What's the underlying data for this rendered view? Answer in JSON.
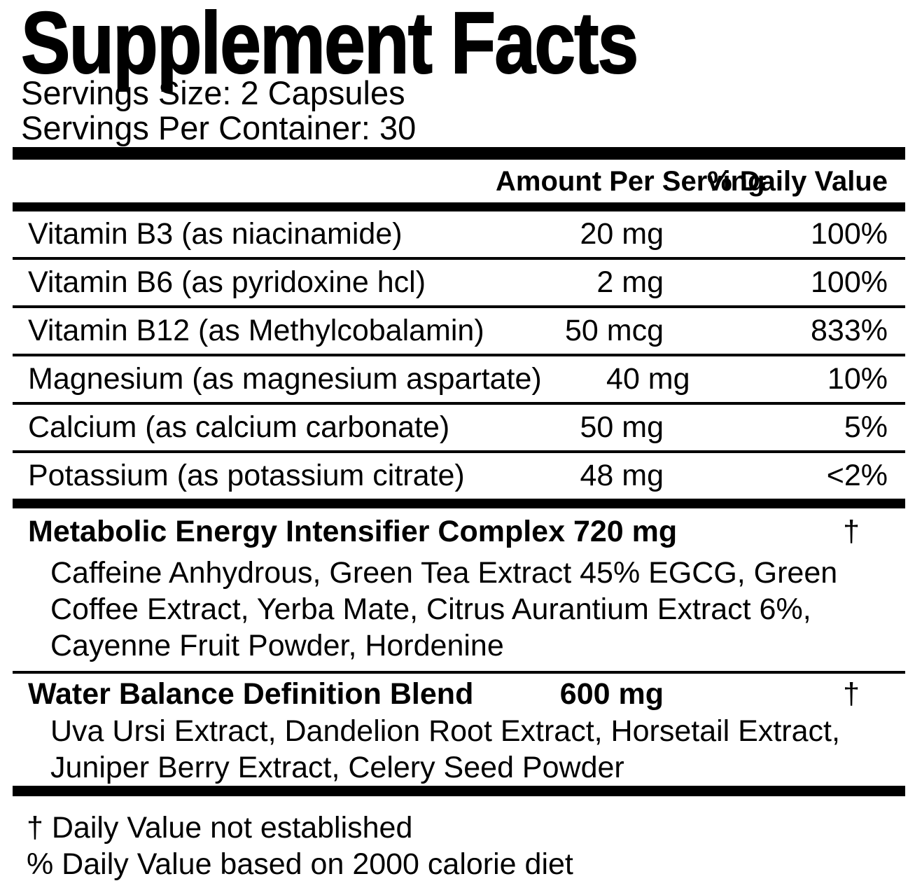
{
  "title": "Supplement Facts",
  "serving_size": "Servings Size: 2 Capsules",
  "servings_per_container": "Servings Per Container: 30",
  "columns": {
    "amount": "Amount Per Serving",
    "dv": "% Daily Value"
  },
  "nutrients": [
    {
      "name": "Vitamin B3 (as niacinamide)",
      "amount": "20 mg",
      "dv": "100%"
    },
    {
      "name": "Vitamin B6 (as pyridoxine hcl)",
      "amount": "2 mg",
      "dv": "100%"
    },
    {
      "name": "Vitamin B12 (as Methylcobalamin)",
      "amount": "50 mcg",
      "dv": "833%"
    },
    {
      "name": "Magnesium (as magnesium aspartate)",
      "amount": "40 mg",
      "dv": "10%"
    },
    {
      "name": "Calcium (as calcium carbonate)",
      "amount": "50 mg",
      "dv": "5%"
    },
    {
      "name": "Potassium (as potassium citrate)",
      "amount": "48 mg",
      "dv": "<2%"
    }
  ],
  "blends": [
    {
      "title": "Metabolic Energy Intensifier Complex 720 mg",
      "amount": "",
      "dv": "†",
      "ingredients": "Caffeine Anhydrous, Green Tea Extract 45% EGCG, Green Coffee Extract, Yerba Mate, Citrus Aurantium Extract 6%, Cayenne Fruit Powder, Hordenine"
    },
    {
      "title": "Water Balance Definition Blend",
      "amount": "600 mg",
      "dv": "†",
      "ingredients": "Uva Ursi Extract, Dandelion Root Extract, Horsetail Extract, Juniper Berry Extract, Celery Seed Powder"
    }
  ],
  "footnotes": [
    "† Daily Value not established",
    "% Daily Value based on 2000 calorie diet"
  ],
  "colors": {
    "ink": "#000000",
    "paper": "#ffffff"
  }
}
